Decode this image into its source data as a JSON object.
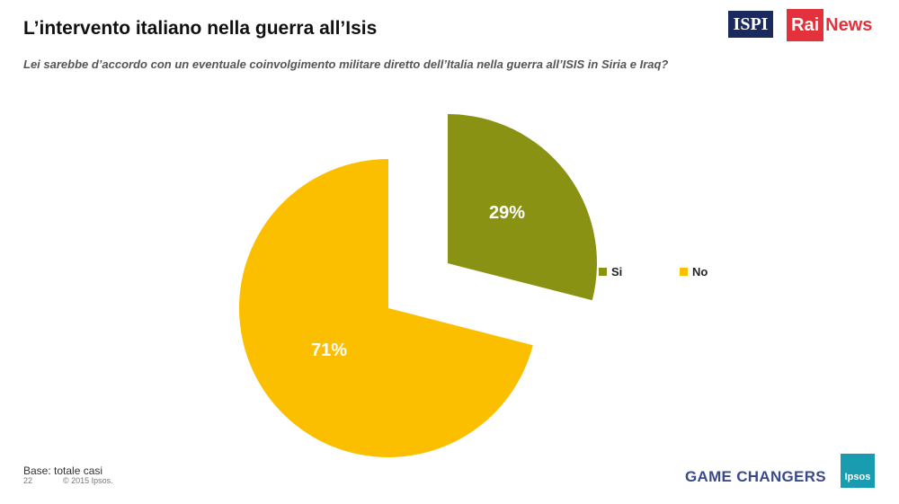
{
  "header": {
    "title": "L’intervento italiano nella guerra all’Isis",
    "subtitle": "Lei sarebbe d’accordo con un eventuale coinvolgimento militare diretto dell’Italia nella guerra all’ISIS in Siria e Iraq?"
  },
  "logos": {
    "ispi": "ISPI",
    "rai_part1": "Rai",
    "rai_part2": "News",
    "ipsos": "Ipsos"
  },
  "chart_data": {
    "type": "pie",
    "categories": [
      "Si",
      "No"
    ],
    "values": [
      29,
      71
    ],
    "labels": [
      "29%",
      "71%"
    ],
    "colors": [
      "#8a9214",
      "#fbbf00"
    ],
    "legend_position": "right",
    "exploded": true
  },
  "footer": {
    "base": "Base: totale casi",
    "page_number": "22",
    "copyright": "© 2015 Ipsos.",
    "tagline": "GAME CHANGERS"
  }
}
